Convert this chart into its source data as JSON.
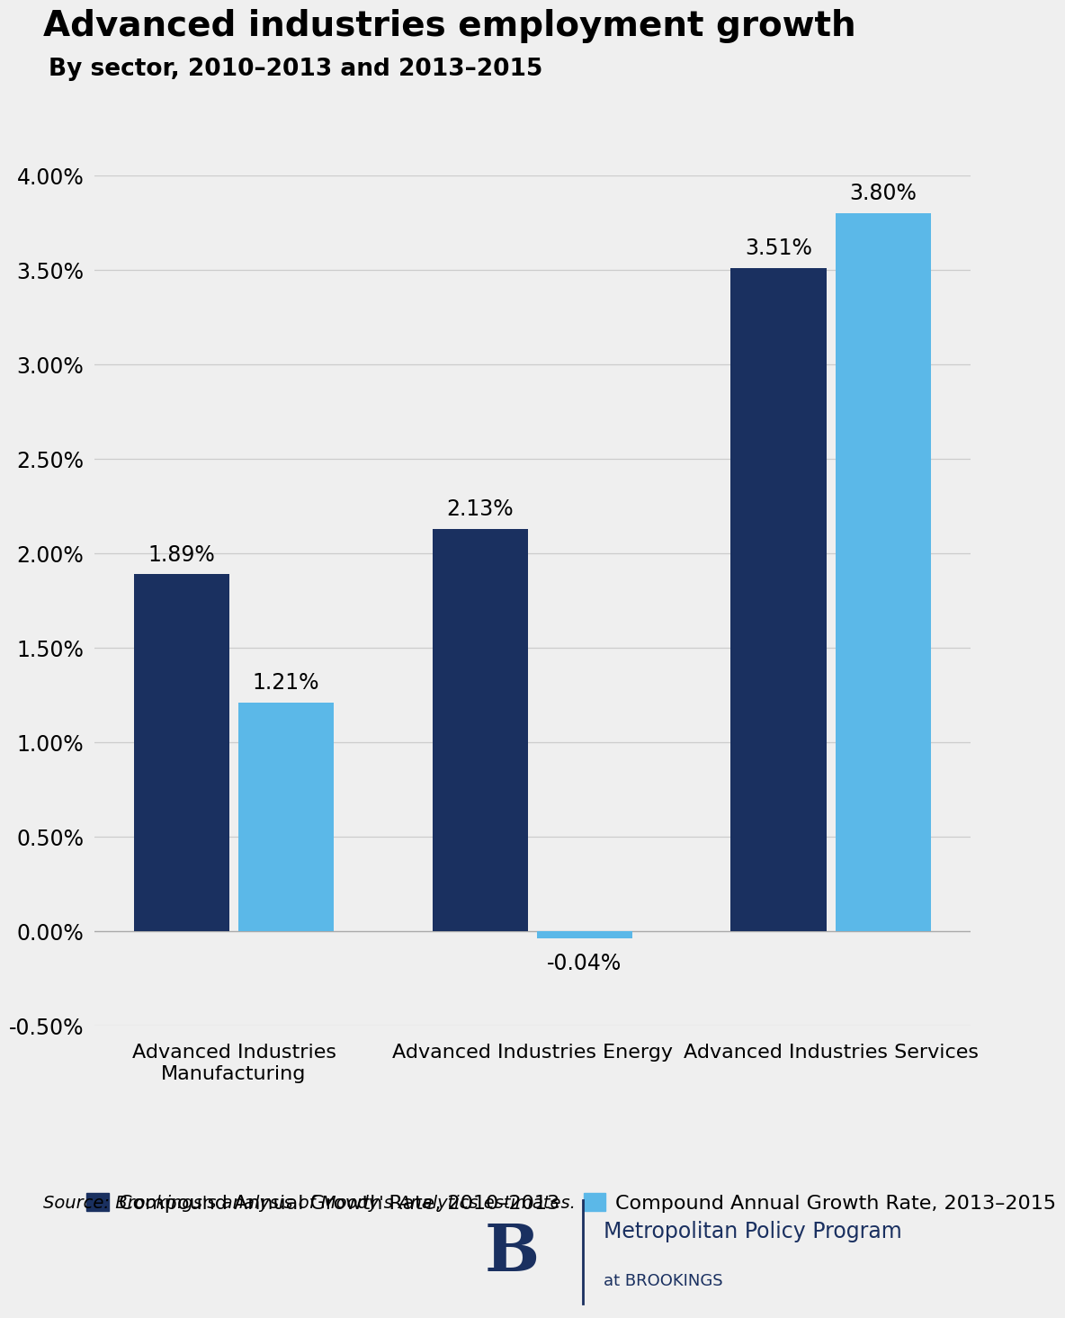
{
  "title": "Advanced industries employment growth",
  "subtitle": "By sector, 2010–2013 and 2013–2015",
  "categories": [
    "Advanced Industries\nManufacturing",
    "Advanced Industries Energy",
    "Advanced Industries Services"
  ],
  "series1_label": "Compound Annual Growth Rate, 2010–2013",
  "series2_label": "Compound Annual Growth Rate, 2013–2015",
  "series1_values": [
    1.89,
    2.13,
    3.51
  ],
  "series2_values": [
    1.21,
    -0.04,
    3.8
  ],
  "series1_labels": [
    "1.89%",
    "2.13%",
    "3.51%"
  ],
  "series2_labels": [
    "1.21%",
    "-0.04%",
    "3.80%"
  ],
  "color1": "#1a3060",
  "color2": "#5bb8e8",
  "ylim_min": -0.5,
  "ylim_max": 4.0,
  "yticks": [
    -0.5,
    0.0,
    0.5,
    1.0,
    1.5,
    2.0,
    2.5,
    3.0,
    3.5,
    4.0
  ],
  "source_text": "Source: Brookings's analysis of Moody's Analytics estimates.",
  "background_color": "#efefef",
  "grid_color": "#cccccc",
  "title_fontsize": 28,
  "subtitle_fontsize": 19,
  "tick_fontsize": 17,
  "label_fontsize": 16,
  "legend_fontsize": 16,
  "bar_label_fontsize": 17,
  "source_fontsize": 14,
  "bar_width": 0.32,
  "bar_gap": 0.03
}
